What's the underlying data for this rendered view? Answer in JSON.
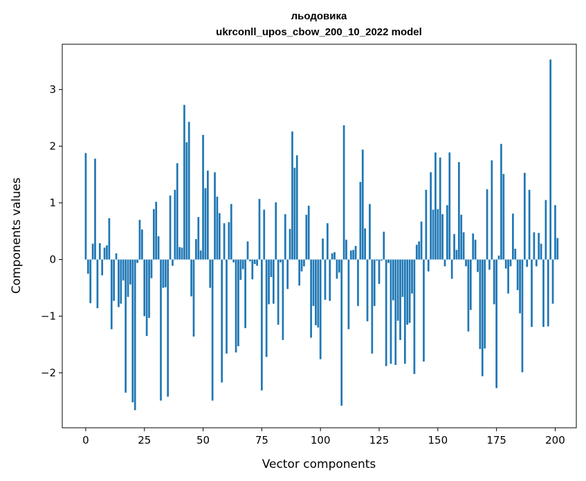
{
  "chart_data": {
    "type": "bar",
    "title_line1": "льодовика",
    "title_line2": "ukrconll_upos_cbow_200_10_2022 model",
    "xlabel": "Vector components",
    "ylabel": "Components values",
    "xlim": [
      -10,
      209
    ],
    "ylim": [
      -2.97,
      3.8
    ],
    "xticks": [
      0,
      25,
      50,
      75,
      100,
      125,
      150,
      175,
      200
    ],
    "yticks": [
      -2,
      -1,
      0,
      1,
      2,
      3
    ],
    "xtick_labels": [
      "0",
      "25",
      "50",
      "75",
      "100",
      "125",
      "150",
      "175",
      "200"
    ],
    "ytick_labels": [
      "−2",
      "−1",
      "0",
      "1",
      "2",
      "3"
    ],
    "bar_color": "#1f77b4",
    "values": [
      1.88,
      -0.25,
      -0.77,
      0.28,
      1.78,
      -0.86,
      0.29,
      -0.28,
      0.21,
      0.25,
      0.73,
      -1.23,
      -0.73,
      0.11,
      -0.84,
      -0.78,
      -0.37,
      -2.35,
      -0.66,
      -0.44,
      -2.52,
      -2.66,
      -0.06,
      0.7,
      0.53,
      -1.0,
      -1.35,
      -1.03,
      -0.33,
      0.89,
      1.02,
      0.41,
      -2.49,
      -0.5,
      -0.49,
      -2.42,
      1.13,
      -0.11,
      1.23,
      1.7,
      0.22,
      0.21,
      2.73,
      2.07,
      2.43,
      -0.65,
      -1.36,
      0.36,
      0.75,
      0.16,
      2.2,
      1.26,
      1.57,
      -0.5,
      -2.49,
      1.54,
      1.11,
      0.82,
      -2.17,
      0.64,
      -1.66,
      0.66,
      0.98,
      -0.05,
      -1.64,
      -1.53,
      -0.36,
      -0.17,
      -1.21,
      0.32,
      -0.03,
      -0.35,
      -0.08,
      -0.11,
      1.07,
      -2.31,
      0.88,
      -1.72,
      -0.79,
      -0.31,
      -0.78,
      1.01,
      -1.15,
      -0.05,
      -1.42,
      0.8,
      -0.52,
      0.54,
      2.26,
      1.62,
      1.84,
      -0.46,
      -0.21,
      -0.12,
      0.79,
      0.95,
      -1.38,
      -0.82,
      -1.16,
      -1.2,
      -1.76,
      0.37,
      -0.71,
      0.64,
      -0.73,
      0.11,
      0.13,
      -0.34,
      -0.23,
      -2.58,
      2.37,
      0.35,
      -1.23,
      0.16,
      0.17,
      0.24,
      -0.82,
      1.37,
      1.94,
      0.55,
      -1.09,
      0.98,
      -1.66,
      -0.82,
      -0.02,
      -0.43,
      -0.02,
      0.49,
      -1.88,
      -0.06,
      -1.84,
      -0.72,
      -1.86,
      -1.08,
      -1.42,
      -0.66,
      -1.84,
      -1.15,
      -1.12,
      -0.6,
      -2.02,
      0.26,
      0.32,
      0.67,
      -1.8,
      1.23,
      -0.21,
      1.54,
      0.88,
      1.89,
      0.89,
      1.8,
      0.8,
      -0.12,
      0.96,
      1.89,
      -0.34,
      0.45,
      0.17,
      1.72,
      0.79,
      0.48,
      -0.12,
      -1.27,
      -0.89,
      0.46,
      0.35,
      -0.22,
      -1.58,
      -2.06,
      -1.57,
      1.24,
      -0.18,
      1.75,
      -0.79,
      -2.27,
      0.07,
      2.04,
      1.51,
      -0.16,
      -0.6,
      -0.12,
      0.81,
      0.19,
      -0.54,
      -0.95,
      -1.99,
      1.53,
      -0.13,
      1.23,
      -1.19,
      0.48,
      -0.12,
      0.47,
      0.28,
      -1.19,
      1.05,
      -1.18,
      3.53,
      -0.78,
      0.96,
      0.38
    ]
  }
}
